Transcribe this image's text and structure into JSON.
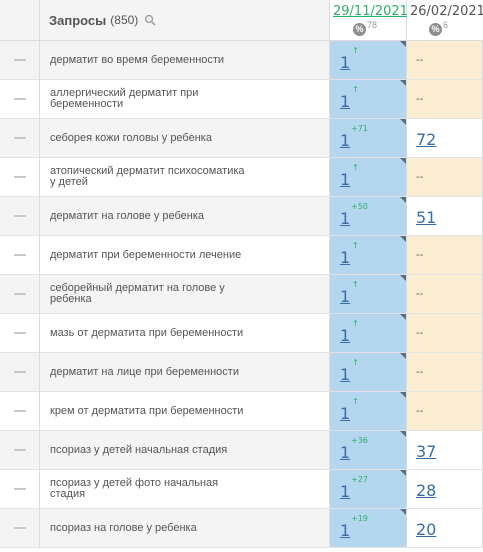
{
  "header": {
    "title": "Запросы",
    "count": "(850)",
    "date1": "29/11/2021",
    "date1_metric": "78",
    "date2": "26/02/2021",
    "date2_metric": "6",
    "percent_badge": "%"
  },
  "rows": [
    {
      "query": "дерматит во время беременности",
      "pos1": "1",
      "delta": "↑",
      "pos2": "--"
    },
    {
      "query": "аллергический дерматит при беременности",
      "pos1": "1",
      "delta": "↑",
      "pos2": "--"
    },
    {
      "query": "себорея кожи головы у ребенка",
      "pos1": "1",
      "delta": "+71",
      "pos2": "72"
    },
    {
      "query": "атопический дерматит психосоматика у детей",
      "pos1": "1",
      "delta": "↑",
      "pos2": "--"
    },
    {
      "query": "дерматит на голове у ребенка",
      "pos1": "1",
      "delta": "+50",
      "pos2": "51"
    },
    {
      "query": "дерматит при беременности лечение",
      "pos1": "1",
      "delta": "↑",
      "pos2": "--"
    },
    {
      "query": "себорейный дерматит на голове у ребенка",
      "pos1": "1",
      "delta": "↑",
      "pos2": "--"
    },
    {
      "query": "мазь от дерматита при беременности",
      "pos1": "1",
      "delta": "↑",
      "pos2": "--"
    },
    {
      "query": "дерматит на лице при беременности",
      "pos1": "1",
      "delta": "↑",
      "pos2": "--"
    },
    {
      "query": "крем от дерматита при беременности",
      "pos1": "1",
      "delta": "↑",
      "pos2": "--"
    },
    {
      "query": "псориаз у детей начальная стадия",
      "pos1": "1",
      "delta": "+36",
      "pos2": "37"
    },
    {
      "query": "псориаз у детей фото начальная стадия",
      "pos1": "1",
      "delta": "+27",
      "pos2": "28"
    },
    {
      "query": "псориаз на голове у ребенка",
      "pos1": "1",
      "delta": "+19",
      "pos2": "20"
    }
  ],
  "colors": {
    "date_col_bg": "#b4d7ef",
    "empty_col_bg": "#faedd1",
    "delta_green": "#2eaf6b",
    "link_blue": "#3a6da8"
  }
}
